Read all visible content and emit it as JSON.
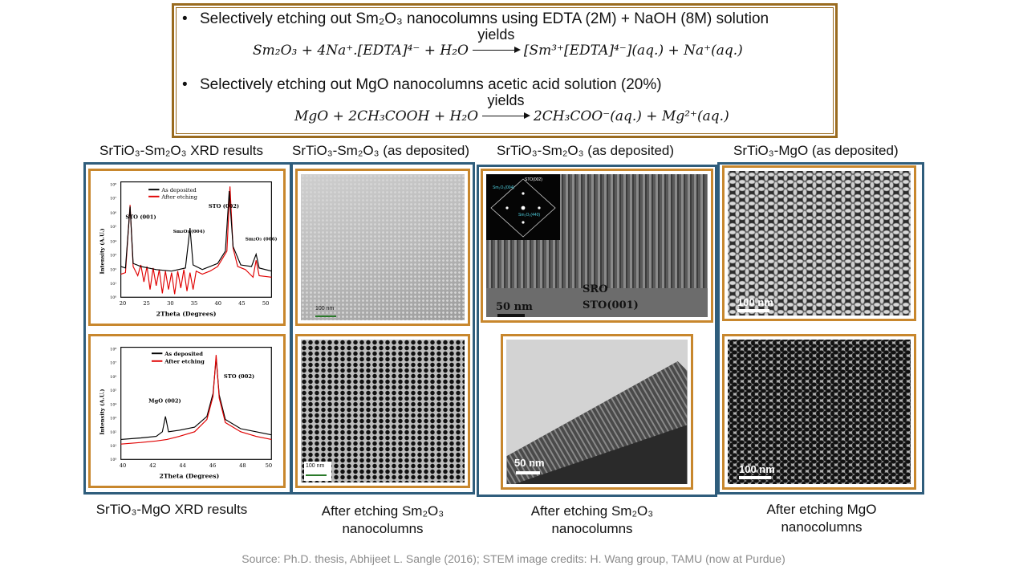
{
  "equation_box": {
    "bullet1": "Selectively etching out Sm₂O₃ nanocolumns using EDTA (2M) + NaOH (8M) solution",
    "bullet2": "Selectively etching out MgO nanocolumns acetic acid solution (20%)",
    "arrow_label": "yields",
    "eq1_left": "Sm₂O₃ + 4Na⁺.[EDTA]⁴⁻ + H₂O",
    "eq1_right": "[Sm³⁺[EDTA]⁴⁻](aq.) + Na⁺(aq.)",
    "eq2_left": "MgO + 2CH₃COOH + H₂O",
    "eq2_right": "2CH₃COO⁻(aq.) + Mg²⁺(aq.)"
  },
  "headers": {
    "col1": "SrTiO₃-Sm₂O₃ XRD results",
    "col2": "SrTiO₃-Sm₂O₃ (as deposited)",
    "col3": "SrTiO₃-Sm₂O₃ (as deposited)",
    "col4": "SrTiO₃-MgO (as deposited)"
  },
  "captions": {
    "col1": "SrTiO₃-MgO XRD results",
    "col2_line1": "After etching Sm₂O₃",
    "col2_line2": "nanocolumns",
    "col3_line1": "After etching Sm₂O₃",
    "col3_line2": "nanocolumns",
    "col4_line1": "After etching MgO",
    "col4_line2": "nanocolumns"
  },
  "xrd_top": {
    "legend": [
      "As deposited",
      "After etching"
    ],
    "ylabel": "Intensity (A.U.)",
    "xlabel": "2Theta (Degrees)",
    "xticks": [
      "20",
      "25",
      "30",
      "35",
      "40",
      "45",
      "50"
    ],
    "yticks": [
      "10⁰",
      "10¹",
      "10²",
      "10³",
      "10⁴",
      "10⁵",
      "10⁶",
      "10⁷",
      "10⁸"
    ],
    "peaks": [
      "STO (001)",
      "Sm₂O₃ (004)",
      "STO (002)",
      "Sm₂O₃ (006)"
    ],
    "colors": {
      "as_deposited": "#000000",
      "after_etching": "#e00000"
    }
  },
  "xrd_bottom": {
    "legend": [
      "As deposited",
      "After etching"
    ],
    "ylabel": "Intensity (A.U.)",
    "xlabel": "2Theta (Degrees)",
    "xticks": [
      "40",
      "42",
      "44",
      "46",
      "48",
      "50"
    ],
    "yticks": [
      "10⁰",
      "10¹",
      "10²",
      "10³",
      "10⁴",
      "10⁵",
      "10⁶",
      "10⁷",
      "10⁸"
    ],
    "peaks": [
      "MgO (002)",
      "STO (002)"
    ],
    "colors": {
      "as_deposited": "#000000",
      "after_etching": "#e00000"
    }
  },
  "micrographs": {
    "sem_sm_asdep_scale": "100 nm",
    "sem_sm_etched_scale": "100 nm",
    "tem_asdep_scale": "50 nm",
    "tem_asdep_labels": [
      "SRO",
      "STO(001)"
    ],
    "tem_inset_labels": [
      "STO(002)",
      "Sm₂O₃(004)",
      "Sm₂O₃(440)"
    ],
    "tem_etched_scale": "50 nm",
    "sem_mgo_asdep_scale": "100 nm",
    "sem_mgo_etched_scale": "100 nm"
  },
  "source": "Source: Ph.D. thesis, Abhijeet L. Sangle (2016); STEM image credits: H. Wang group, TAMU (now at Purdue)"
}
